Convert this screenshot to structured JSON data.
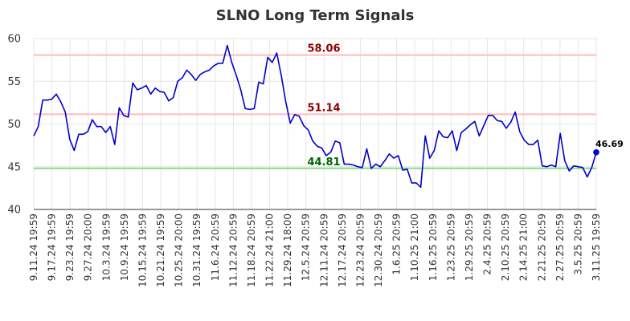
{
  "chart_data": {
    "type": "line",
    "title": "SLNO Long Term Signals",
    "xlabel": "",
    "ylabel": "",
    "ylim": [
      40,
      60
    ],
    "yticks": [
      40,
      45,
      50,
      55,
      60
    ],
    "grid": true,
    "x_tick_labels": [
      "9.11.24 19:59",
      "9.17.24 19:59",
      "9.23.24 19:59",
      "9.27.24 20:00",
      "10.3.24 19:59",
      "10.9.24 19:59",
      "10.15.24 19:59",
      "10.21.24 19:59",
      "10.25.24 20:00",
      "10.31.24 19:59",
      "11.6.24 20:59",
      "11.12.24 20:59",
      "11.18.24 20:59",
      "11.22.24 21:00",
      "11.29.24 18:00",
      "12.5.24 20:59",
      "12.11.24 20:59",
      "12.17.24 20:59",
      "12.23.24 20:59",
      "12.30.24 20:59",
      "1.6.25 20:59",
      "1.10.25 21:00",
      "1.16.25 20:59",
      "1.23.25 20:59",
      "1.29.25 20:59",
      "2.4.25 20:59",
      "2.10.25 20:59",
      "2.14.25 21:00",
      "2.21.25 20:59",
      "2.27.25 20:59",
      "3.5.25 20:59",
      "3.11.25 19:59"
    ],
    "series": [
      {
        "color": "#0000cc",
        "values": [
          48.6,
          49.7,
          52.8,
          52.8,
          52.9,
          53.5,
          52.6,
          51.4,
          48.2,
          46.9,
          48.8,
          48.8,
          49.1,
          50.5,
          49.7,
          49.7,
          49.0,
          49.7,
          47.6,
          51.9,
          51.0,
          50.8,
          54.8,
          54.0,
          54.2,
          54.5,
          53.5,
          54.2,
          53.8,
          53.7,
          52.7,
          53.1,
          55.0,
          55.4,
          56.3,
          55.8,
          55.1,
          55.8,
          56.1,
          56.3,
          56.8,
          57.1,
          57.1,
          59.2,
          57.2,
          55.7,
          54.0,
          51.8,
          51.7,
          51.8,
          54.9,
          54.7,
          57.8,
          57.2,
          58.3,
          55.7,
          52.6,
          50.1,
          51.1,
          50.9,
          49.8,
          49.3,
          48.0,
          47.4,
          47.2,
          46.3,
          46.7,
          48.0,
          47.8,
          45.3,
          45.3,
          45.2,
          45.0,
          44.9,
          47.1,
          44.8,
          45.3,
          45.0,
          45.7,
          46.5,
          46.0,
          46.3,
          44.6,
          44.7,
          43.1,
          43.1,
          42.6,
          48.6,
          46.0,
          46.9,
          49.2,
          48.5,
          48.4,
          49.2,
          46.9,
          49.0,
          49.4,
          49.9,
          50.3,
          48.6,
          49.8,
          51.0,
          51.0,
          50.4,
          50.3,
          49.5,
          50.2,
          51.4,
          49.1,
          48.1,
          47.6,
          47.6,
          48.1,
          45.1,
          45.0,
          45.2,
          45.0,
          48.9,
          45.7,
          44.5,
          45.1,
          45.0,
          44.9,
          43.8,
          44.9,
          46.69
        ]
      }
    ],
    "levels": [
      {
        "value": 58.06,
        "label": "58.06",
        "line_color": "#ffbbbb",
        "text_color": "#8b0000"
      },
      {
        "value": 51.14,
        "label": "51.14",
        "line_color": "#ffbbbb",
        "text_color": "#8b0000"
      },
      {
        "value": 44.81,
        "label": "44.81",
        "line_color": "#88dd88",
        "text_color": "#006400"
      }
    ],
    "last_value_label": "46.69"
  }
}
